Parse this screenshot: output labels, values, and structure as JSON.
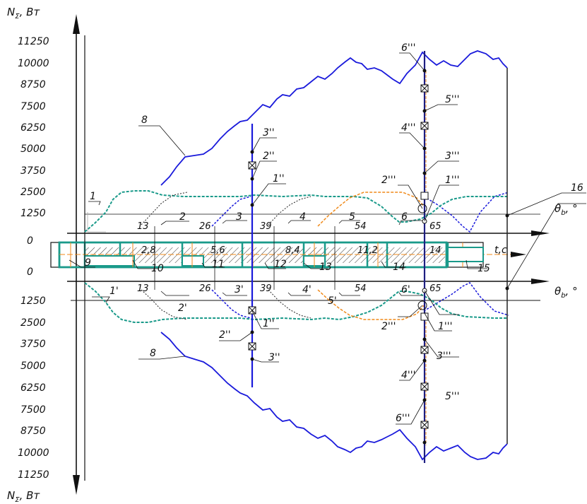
{
  "axes": {
    "y_label_top": "N",
    "y_label_top_sub": "Σ",
    "y_label_top_unit": ", Вт",
    "y_label_bottom": "N",
    "y_label_bottom_sub": "Σ",
    "y_label_bottom_unit": ", Вт",
    "theta_label": "θ",
    "theta_sub": "b",
    "theta_unit": ", °",
    "time_label": "t,c",
    "zero_top": "0",
    "zero_bottom": "0"
  },
  "ticks_top": [
    "11250",
    "10000",
    "8750",
    "7500",
    "6250",
    "5000",
    "3750",
    "2500",
    "1250"
  ],
  "ticks_bottom": [
    "1250",
    "2500",
    "3750",
    "5000",
    "6250",
    "7500",
    "8750",
    "10000",
    "11250"
  ],
  "time_marks_top": [
    "13",
    "26",
    "39",
    "54",
    "65"
  ],
  "time_marks_bottom": [
    "13",
    "26",
    "39",
    "54",
    "65"
  ],
  "shaft_values": [
    "2,8",
    "5,6",
    "8,4",
    "11,2",
    "14"
  ],
  "labels_top": {
    "l1": "1",
    "l2": "2",
    "l3": "3",
    "l4": "4",
    "l5": "5",
    "l6": "6",
    "l8": "8",
    "l1pp": "1''",
    "l2pp": "2''",
    "l3pp": "3''",
    "l1ppp": "1'''",
    "l2ppp": "2'''",
    "l3ppp": "3'''",
    "l4ppp": "4'''",
    "l5ppp": "5'''",
    "l6ppp": "6'''",
    "l16": "16"
  },
  "labels_bottom": {
    "l1": "1'",
    "l2": "2'",
    "l3": "3'",
    "l4": "4'",
    "l5": "5'",
    "l6": "6'",
    "l8": "8",
    "l1pp": "1''",
    "l2pp": "2''",
    "l3pp": "3''",
    "l1ppp": "1'''",
    "l2ppp": "2'''",
    "l3ppp": "3'''",
    "l4ppp": "4'''",
    "l5ppp": "5'''",
    "l6ppp": "6'''"
  },
  "labels_shaft": {
    "l9": "9",
    "l10": "10",
    "l11": "11",
    "l12": "12",
    "l13": "13",
    "l14": "14",
    "l15": "15"
  },
  "colors": {
    "blue": "#1a1adb",
    "teal": "#1a9a8a",
    "orange": "#f08a1a",
    "dark": "#222222"
  }
}
